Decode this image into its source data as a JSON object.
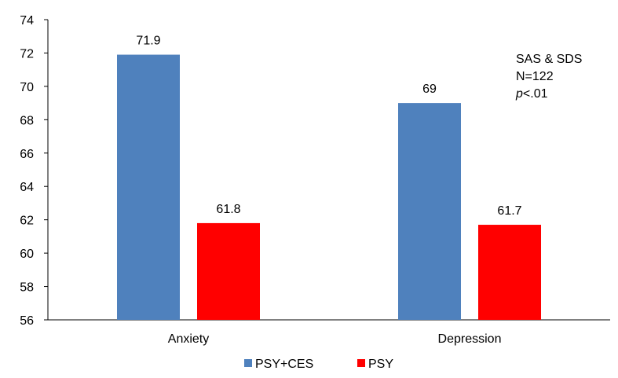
{
  "chart_data": {
    "type": "bar",
    "title": "",
    "xlabel": "",
    "ylabel": "",
    "ylim": [
      56,
      74
    ],
    "yticks": [
      56,
      58,
      60,
      62,
      64,
      66,
      68,
      70,
      72,
      74
    ],
    "categories": [
      "Anxiety",
      "Depression"
    ],
    "series": [
      {
        "name": "PSY+CES",
        "color": "#4f81bd",
        "values": [
          71.9,
          69
        ]
      },
      {
        "name": "PSY",
        "color": "#ff0000",
        "values": [
          61.8,
          61.7
        ]
      }
    ],
    "data_labels": [
      [
        "71.9",
        "69"
      ],
      [
        "61.8",
        "61.7"
      ]
    ],
    "annotation": {
      "line1": "SAS & SDS",
      "line2": "N=122",
      "line3_italic": "p",
      "line3_rest": "<.01"
    },
    "legend_position": "bottom"
  }
}
